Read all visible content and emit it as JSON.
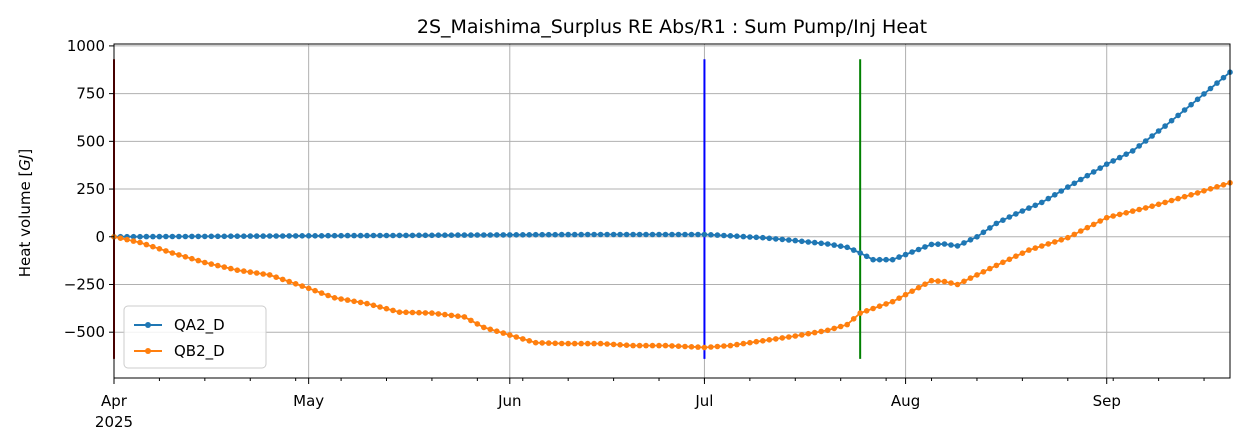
{
  "chart_data": {
    "type": "line",
    "title": "2S_Maishima_Surplus RE Abs/R1 : Sum Pump/Inj Heat",
    "ylabel_text": "Heat volume [",
    "ylabel_unit": "GJ",
    "ylabel_close": "]",
    "xlim": [
      "2025-04-01",
      "2025-09-20"
    ],
    "ylim": [
      -740,
      1010
    ],
    "yticks": [
      -500,
      -250,
      0,
      250,
      500,
      750,
      1000
    ],
    "ytick_labels": [
      "−500",
      "−250",
      "0",
      "250",
      "500",
      "750",
      "1000"
    ],
    "xticks": [
      {
        "date": "2025-04-01",
        "label": "Apr",
        "sublabel": "2025"
      },
      {
        "date": "2025-05-01",
        "label": "May",
        "sublabel": ""
      },
      {
        "date": "2025-06-01",
        "label": "Jun",
        "sublabel": ""
      },
      {
        "date": "2025-07-01",
        "label": "Jul",
        "sublabel": ""
      },
      {
        "date": "2025-08-01",
        "label": "Aug",
        "sublabel": ""
      },
      {
        "date": "2025-09-01",
        "label": "Sep",
        "sublabel": ""
      }
    ],
    "grid": true,
    "legend_position": "lower-left",
    "series": [
      {
        "name": "QA2_D",
        "color": "#1f77b4",
        "points": [
          [
            "2025-04-01",
            0
          ],
          [
            "2025-04-15",
            2
          ],
          [
            "2025-05-01",
            5
          ],
          [
            "2025-05-15",
            7
          ],
          [
            "2025-06-01",
            10
          ],
          [
            "2025-06-15",
            12
          ],
          [
            "2025-07-01",
            12
          ],
          [
            "2025-07-05",
            5
          ],
          [
            "2025-07-10",
            -5
          ],
          [
            "2025-07-15",
            -20
          ],
          [
            "2025-07-20",
            -38
          ],
          [
            "2025-07-23",
            -55
          ],
          [
            "2025-07-25",
            -85
          ],
          [
            "2025-07-27",
            -120
          ],
          [
            "2025-07-30",
            -120
          ],
          [
            "2025-08-02",
            -80
          ],
          [
            "2025-08-05",
            -40
          ],
          [
            "2025-08-07",
            -38
          ],
          [
            "2025-08-09",
            -48
          ],
          [
            "2025-08-12",
            0
          ],
          [
            "2025-08-15",
            70
          ],
          [
            "2025-08-18",
            120
          ],
          [
            "2025-08-22",
            180
          ],
          [
            "2025-08-26",
            260
          ],
          [
            "2025-09-01",
            380
          ],
          [
            "2025-09-05",
            450
          ],
          [
            "2025-09-10",
            580
          ],
          [
            "2025-09-15",
            720
          ],
          [
            "2025-09-20",
            862
          ]
        ]
      },
      {
        "name": "QB2_D",
        "color": "#ff7f0e",
        "points": [
          [
            "2025-04-01",
            0
          ],
          [
            "2025-04-05",
            -30
          ],
          [
            "2025-04-10",
            -85
          ],
          [
            "2025-04-15",
            -135
          ],
          [
            "2025-04-20",
            -175
          ],
          [
            "2025-04-25",
            -200
          ],
          [
            "2025-05-01",
            -270
          ],
          [
            "2025-05-05",
            -320
          ],
          [
            "2025-05-10",
            -350
          ],
          [
            "2025-05-15",
            -395
          ],
          [
            "2025-05-20",
            -400
          ],
          [
            "2025-05-25",
            -420
          ],
          [
            "2025-05-28",
            -475
          ],
          [
            "2025-06-01",
            -515
          ],
          [
            "2025-06-05",
            -555
          ],
          [
            "2025-06-10",
            -560
          ],
          [
            "2025-06-15",
            -560
          ],
          [
            "2025-06-20",
            -570
          ],
          [
            "2025-06-25",
            -570
          ],
          [
            "2025-07-01",
            -580
          ],
          [
            "2025-07-05",
            -570
          ],
          [
            "2025-07-10",
            -545
          ],
          [
            "2025-07-15",
            -520
          ],
          [
            "2025-07-20",
            -490
          ],
          [
            "2025-07-23",
            -460
          ],
          [
            "2025-07-25",
            -400
          ],
          [
            "2025-07-30",
            -340
          ],
          [
            "2025-08-02",
            -285
          ],
          [
            "2025-08-05",
            -230
          ],
          [
            "2025-08-07",
            -235
          ],
          [
            "2025-08-09",
            -250
          ],
          [
            "2025-08-12",
            -200
          ],
          [
            "2025-08-15",
            -150
          ],
          [
            "2025-08-20",
            -70
          ],
          [
            "2025-08-26",
            -5
          ],
          [
            "2025-09-01",
            100
          ],
          [
            "2025-09-08",
            160
          ],
          [
            "2025-09-15",
            230
          ],
          [
            "2025-09-20",
            283
          ]
        ]
      }
    ],
    "vlines": [
      {
        "date": "2025-04-01",
        "y0": -640,
        "y1": 930,
        "color": "#8b0000"
      },
      {
        "date": "2025-07-01",
        "y0": -640,
        "y1": 930,
        "color": "#0000ff"
      },
      {
        "date": "2025-07-25",
        "y0": -640,
        "y1": 930,
        "color": "#008000"
      }
    ]
  }
}
